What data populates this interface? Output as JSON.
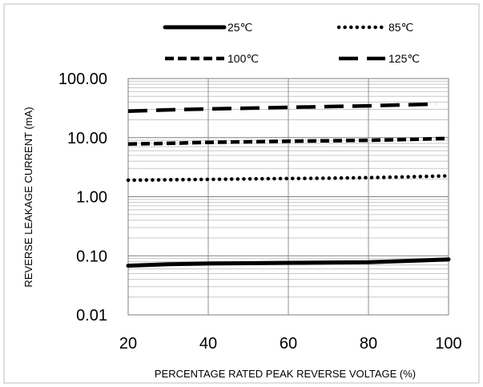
{
  "chart_data": {
    "type": "line",
    "title": "",
    "xlabel": "PERCENTAGE RATED PEAK REVERSE VOLTAGE (%)",
    "ylabel": "REVERSE LEAKAGE CURRENT (mA)",
    "xlim": [
      20,
      100
    ],
    "ylim": [
      0.01,
      100
    ],
    "yscale": "log",
    "x_ticks": [
      "20",
      "40",
      "60",
      "80",
      "100"
    ],
    "y_ticks": [
      "100.00",
      "10.00",
      "1.00",
      "0.10",
      "0.01"
    ],
    "grid": true,
    "legend_position": "top",
    "series": [
      {
        "name": "25℃",
        "style": "solid",
        "color": "#000000",
        "x": [
          20,
          30,
          40,
          50,
          60,
          70,
          80,
          90,
          100
        ],
        "y": [
          0.068,
          0.072,
          0.074,
          0.075,
          0.076,
          0.077,
          0.078,
          0.082,
          0.087
        ]
      },
      {
        "name": "85℃",
        "style": "dotted",
        "color": "#000000",
        "x": [
          20,
          30,
          40,
          50,
          60,
          70,
          80,
          90,
          100
        ],
        "y": [
          1.9,
          1.93,
          1.96,
          2.0,
          2.03,
          2.06,
          2.1,
          2.17,
          2.25
        ]
      },
      {
        "name": "100℃",
        "style": "short-dash",
        "color": "#000000",
        "x": [
          20,
          30,
          40,
          50,
          60,
          70,
          80,
          90,
          100
        ],
        "y": [
          7.8,
          8.0,
          8.3,
          8.5,
          8.7,
          8.85,
          9.0,
          9.3,
          9.7
        ]
      },
      {
        "name": "125℃",
        "style": "long-dash",
        "color": "#000000",
        "x": [
          20,
          30,
          40,
          50,
          60,
          70,
          80,
          90,
          97
        ],
        "y": [
          28.0,
          29.5,
          30.5,
          31.5,
          32.5,
          33.5,
          34.5,
          36.0,
          37.0
        ]
      }
    ]
  }
}
